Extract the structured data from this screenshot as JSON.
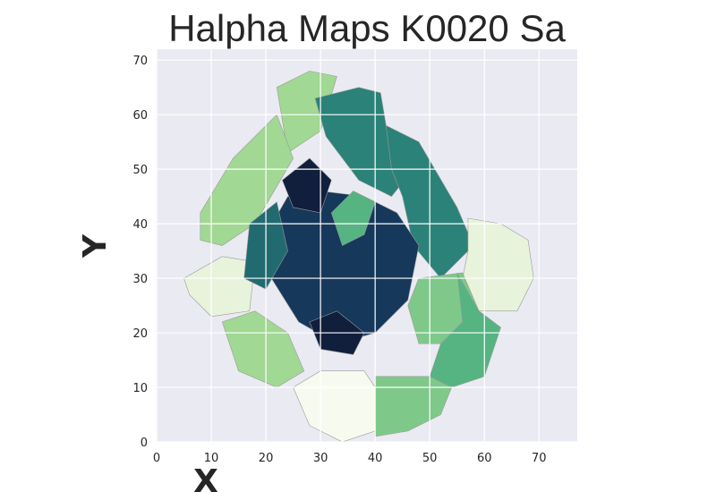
{
  "chart_data": {
    "type": "heatmap",
    "title": "Halpha Maps K0020 Sa",
    "xlabel": "X",
    "ylabel": "Y",
    "xlim": [
      0,
      77
    ],
    "ylim": [
      0,
      72
    ],
    "x_ticks": [
      "0",
      "10",
      "20",
      "30",
      "40",
      "50",
      "60",
      "70"
    ],
    "y_ticks": [
      "0",
      "10",
      "20",
      "30",
      "40",
      "50",
      "60",
      "70"
    ],
    "grid": true,
    "colormap": [
      "#f7fbef",
      "#e8f3dc",
      "#c5e6b4",
      "#a1d893",
      "#7ec989",
      "#55b482",
      "#3a9a7e",
      "#2b8278",
      "#216b70",
      "#1a5266",
      "#16385a",
      "#111e3c"
    ],
    "background": "#eaeaf2",
    "regions": [
      {
        "name": "upper-left-light-green",
        "level": 3,
        "points": [
          [
            22,
            65
          ],
          [
            28,
            68
          ],
          [
            33,
            67
          ],
          [
            30,
            57
          ],
          [
            24,
            53
          ]
        ]
      },
      {
        "name": "far-left-green",
        "level": 3,
        "points": [
          [
            8,
            42
          ],
          [
            14,
            52
          ],
          [
            22,
            60
          ],
          [
            25,
            52
          ],
          [
            18,
            40
          ],
          [
            12,
            36
          ],
          [
            8,
            37
          ]
        ]
      },
      {
        "name": "left-lower-white",
        "level": 1,
        "points": [
          [
            5,
            30
          ],
          [
            12,
            34
          ],
          [
            18,
            33
          ],
          [
            17,
            24
          ],
          [
            10,
            23
          ],
          [
            6,
            27
          ]
        ]
      },
      {
        "name": "upper-teal-wedge",
        "level": 7,
        "points": [
          [
            29,
            63
          ],
          [
            37,
            65
          ],
          [
            41,
            64
          ],
          [
            42,
            58
          ],
          [
            48,
            55
          ],
          [
            47,
            50
          ],
          [
            43,
            45
          ],
          [
            37,
            48
          ],
          [
            31,
            56
          ]
        ]
      },
      {
        "name": "upper-right-teal",
        "level": 7,
        "points": [
          [
            42,
            58
          ],
          [
            48,
            55
          ],
          [
            55,
            43
          ],
          [
            58,
            36
          ],
          [
            52,
            30
          ],
          [
            47,
            36
          ],
          [
            45,
            45
          ],
          [
            43,
            50
          ]
        ]
      },
      {
        "name": "right-white",
        "level": 1,
        "points": [
          [
            57,
            41
          ],
          [
            63,
            40
          ],
          [
            68,
            37
          ],
          [
            69,
            30
          ],
          [
            66,
            24
          ],
          [
            59,
            24
          ],
          [
            56,
            30
          ],
          [
            57,
            35
          ]
        ]
      },
      {
        "name": "right-lower-green",
        "level": 4,
        "points": [
          [
            48,
            30
          ],
          [
            56,
            31
          ],
          [
            59,
            24
          ],
          [
            55,
            18
          ],
          [
            48,
            18
          ],
          [
            46,
            25
          ]
        ]
      },
      {
        "name": "lower-right-teal-green",
        "level": 5,
        "points": [
          [
            55,
            31
          ],
          [
            59,
            24
          ],
          [
            63,
            21
          ],
          [
            60,
            12
          ],
          [
            54,
            10
          ],
          [
            50,
            12
          ],
          [
            52,
            18
          ],
          [
            56,
            22
          ]
        ]
      },
      {
        "name": "bottom-right-green",
        "level": 4,
        "points": [
          [
            40,
            12
          ],
          [
            50,
            12
          ],
          [
            54,
            10
          ],
          [
            52,
            5
          ],
          [
            46,
            2
          ],
          [
            40,
            1
          ]
        ]
      },
      {
        "name": "bottom-center-white",
        "level": 0,
        "points": [
          [
            25,
            10
          ],
          [
            30,
            13
          ],
          [
            38,
            13
          ],
          [
            40,
            10
          ],
          [
            40,
            2
          ],
          [
            34,
            0
          ],
          [
            28,
            3
          ]
        ]
      },
      {
        "name": "left-lower-green",
        "level": 3,
        "points": [
          [
            12,
            22
          ],
          [
            18,
            24
          ],
          [
            24,
            20
          ],
          [
            27,
            13
          ],
          [
            22,
            10
          ],
          [
            15,
            13
          ]
        ]
      },
      {
        "name": "center-dark-core",
        "level": 10,
        "points": [
          [
            20,
            38
          ],
          [
            24,
            45
          ],
          [
            30,
            46
          ],
          [
            38,
            45
          ],
          [
            44,
            42
          ],
          [
            48,
            36
          ],
          [
            46,
            26
          ],
          [
            40,
            20
          ],
          [
            33,
            18
          ],
          [
            26,
            22
          ],
          [
            21,
            30
          ]
        ]
      },
      {
        "name": "upper-dark-blob",
        "level": 11,
        "points": [
          [
            23,
            48
          ],
          [
            28,
            52
          ],
          [
            32,
            48
          ],
          [
            30,
            42
          ],
          [
            25,
            43
          ]
        ]
      },
      {
        "name": "center-green-patches",
        "level": 5,
        "points": [
          [
            32,
            42
          ],
          [
            36,
            46
          ],
          [
            40,
            44
          ],
          [
            38,
            38
          ],
          [
            34,
            36
          ]
        ]
      },
      {
        "name": "lower-center-dark",
        "level": 11,
        "points": [
          [
            28,
            22
          ],
          [
            33,
            24
          ],
          [
            38,
            20
          ],
          [
            36,
            16
          ],
          [
            30,
            17
          ]
        ]
      },
      {
        "name": "left-teal-band",
        "level": 8,
        "points": [
          [
            17,
            40
          ],
          [
            22,
            44
          ],
          [
            24,
            35
          ],
          [
            20,
            28
          ],
          [
            16,
            30
          ]
        ]
      }
    ]
  }
}
